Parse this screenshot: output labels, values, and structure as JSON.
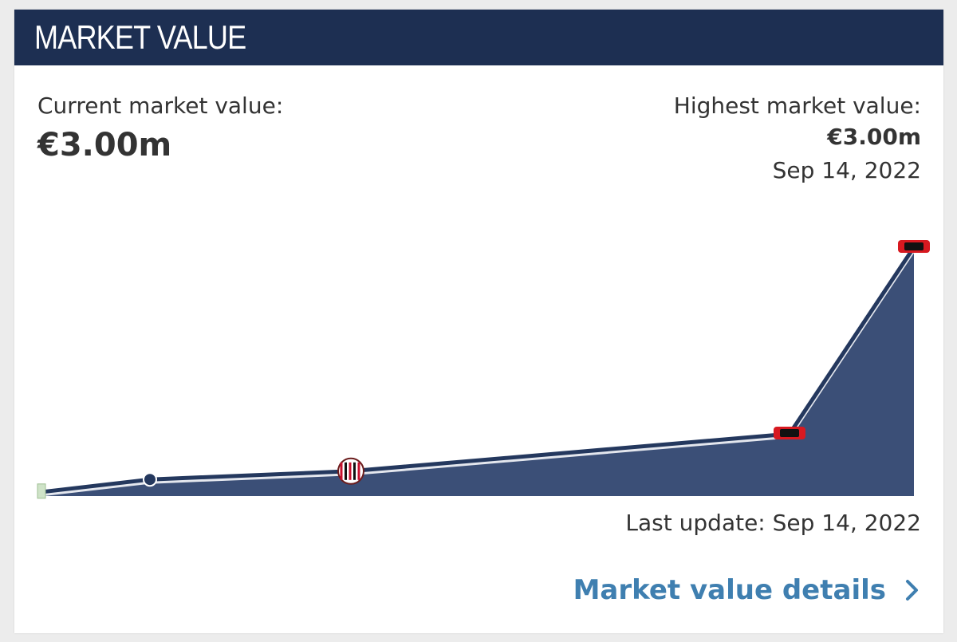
{
  "header": {
    "title": "MARKET VALUE"
  },
  "current": {
    "label": "Current market value:",
    "value": "€3.00m"
  },
  "highest": {
    "label": "Highest market value:",
    "value": "€3.00m",
    "date": "Sep 14, 2022"
  },
  "footer": {
    "last_update": "Last update: Sep 14, 2022",
    "details_link": "Market value details"
  },
  "icons": {
    "details_link": "chevron-right-icon"
  },
  "colors": {
    "header_bg": "#1d2f52",
    "area_fill": "#3b4f77",
    "line": "#24385e",
    "link": "#3f7fb0",
    "milan_red": "#c8102e",
    "az_red": "#d71920"
  },
  "chart_data": {
    "type": "area",
    "title": "",
    "xlabel": "",
    "ylabel": "",
    "x_index": [
      0,
      1,
      2,
      3,
      4
    ],
    "values": [
      0.05,
      0.2,
      0.3,
      0.75,
      3.0
    ],
    "ylim": [
      0,
      3.0
    ],
    "grid": false,
    "markers": [
      "club-crest",
      "dot",
      "ac-milan-crest",
      "az-crest",
      "az-crest"
    ]
  }
}
